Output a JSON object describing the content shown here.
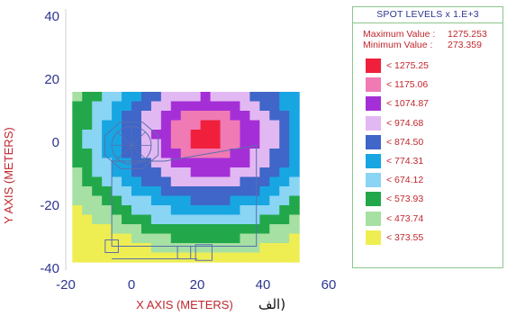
{
  "chart_data": {
    "type": "heatmap",
    "title": "",
    "xlabel": "X AXIS  (METERS)",
    "ylabel": "Y AXIS  (METERS)",
    "xlim": [
      -20,
      60
    ],
    "ylim": [
      -40,
      40
    ],
    "xticks": [
      -20,
      0,
      20,
      40,
      60
    ],
    "yticks": [
      40,
      20,
      0,
      -20,
      -40
    ],
    "caption": "الف)",
    "grid": false,
    "legend_position": "right",
    "data_extent": {
      "x": [
        -18,
        51
      ],
      "y": [
        -38,
        16
      ]
    },
    "hotspot_center": [
      23,
      2
    ],
    "levels": [
      {
        "label": "< 1275.25",
        "value": 1275.25,
        "color": "#f0203c"
      },
      {
        "label": "< 1175.06",
        "value": 1175.06,
        "color": "#f07ab4"
      },
      {
        "label": "< 1074.87",
        "value": 1074.87,
        "color": "#a52fd6"
      },
      {
        "label": "< 974.68",
        "value": 974.68,
        "color": "#e2b8f2"
      },
      {
        "label": "< 874.50",
        "value": 874.5,
        "color": "#3f66c8"
      },
      {
        "label": "< 774.31",
        "value": 774.31,
        "color": "#18a6e2"
      },
      {
        "label": "< 674.12",
        "value": 674.12,
        "color": "#8ad4f4"
      },
      {
        "label": "< 573.93",
        "value": 573.93,
        "color": "#22a84a"
      },
      {
        "label": "< 473.74",
        "value": 473.74,
        "color": "#a6e0a2"
      },
      {
        "label": "< 373.55",
        "value": 373.55,
        "color": "#eeee52"
      }
    ]
  },
  "legend": {
    "title": "SPOT LEVELS x 1.E+3",
    "max_label": "Maximum Value :",
    "max_value": "1275.253",
    "min_label": "Minimum Value :",
    "min_value": "273.359"
  }
}
